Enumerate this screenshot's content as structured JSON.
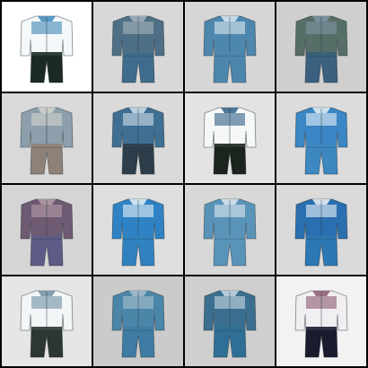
{
  "grid": {
    "rows": 4,
    "columns": 4,
    "border_color": "#000000",
    "tiles": [
      {
        "subject": "tracksuit",
        "background": "#ffffff",
        "top_color": "#f4f8fa",
        "accent_color": "#3f87b8",
        "pants_color": "#1b2a22"
      },
      {
        "subject": "tracksuit",
        "background": "#d8d8d8",
        "top_color": "#4f6f86",
        "accent_color": "#a8b4bc",
        "pants_color": "#3f6c8c"
      },
      {
        "subject": "tracksuit",
        "background": "#d6d6d6",
        "top_color": "#4e87ad",
        "accent_color": "#dce9f0",
        "pants_color": "#4c86ad"
      },
      {
        "subject": "tracksuit",
        "background": "#cfcfcf",
        "top_color": "#576e68",
        "accent_color": "#7f93a3",
        "pants_color": "#3a5f7f"
      },
      {
        "subject": "tracksuit",
        "background": "#d9d9d9",
        "top_color": "#8d9fab",
        "accent_color": "#d3d3cd",
        "pants_color": "#8d8178"
      },
      {
        "subject": "tracksuit",
        "background": "#dadada",
        "top_color": "#3f6f93",
        "accent_color": "#cfe0ea",
        "pants_color": "#2d3e4a"
      },
      {
        "subject": "tracksuit",
        "background": "#e3e3e3",
        "top_color": "#f6f8f8",
        "accent_color": "#2f5f86",
        "pants_color": "#1c241e"
      },
      {
        "subject": "tracksuit",
        "background": "#dcdcdc",
        "top_color": "#3b86c4",
        "accent_color": "#e6f0f6",
        "pants_color": "#3d88c0"
      },
      {
        "subject": "tracksuit",
        "background": "#d5d5d5",
        "top_color": "#6e5a73",
        "accent_color": "#b59fa8",
        "pants_color": "#5d5c86"
      },
      {
        "subject": "tracksuit",
        "background": "#dedede",
        "top_color": "#2f83c4",
        "accent_color": "#e8f1f7",
        "pants_color": "#2f82bf"
      },
      {
        "subject": "tracksuit",
        "background": "#d8d8d8",
        "top_color": "#5a93b8",
        "accent_color": "#dfe8ee",
        "pants_color": "#5a93b8"
      },
      {
        "subject": "tracksuit",
        "background": "#dadada",
        "top_color": "#2a6fb0",
        "accent_color": "#eef3f6",
        "pants_color": "#2c78b4"
      },
      {
        "subject": "tracksuit",
        "background": "#e6e6e6",
        "top_color": "#f3f6f7",
        "accent_color": "#6f8fa2",
        "pants_color": "#2c3632"
      },
      {
        "subject": "tracksuit",
        "background": "#cbcbcb",
        "top_color": "#4b86a8",
        "accent_color": "#a9c1cf",
        "pants_color": "#3f7ca3"
      },
      {
        "subject": "tracksuit",
        "background": "#cfcfcf",
        "top_color": "#3b6f8f",
        "accent_color": "#c9dbe5",
        "pants_color": "#2f6f96"
      },
      {
        "subject": "tracksuit",
        "background": "#f2f2f2",
        "top_color": "#f1eef2",
        "accent_color": "#8b5a6e",
        "pants_color": "#1a1c2e"
      }
    ]
  }
}
